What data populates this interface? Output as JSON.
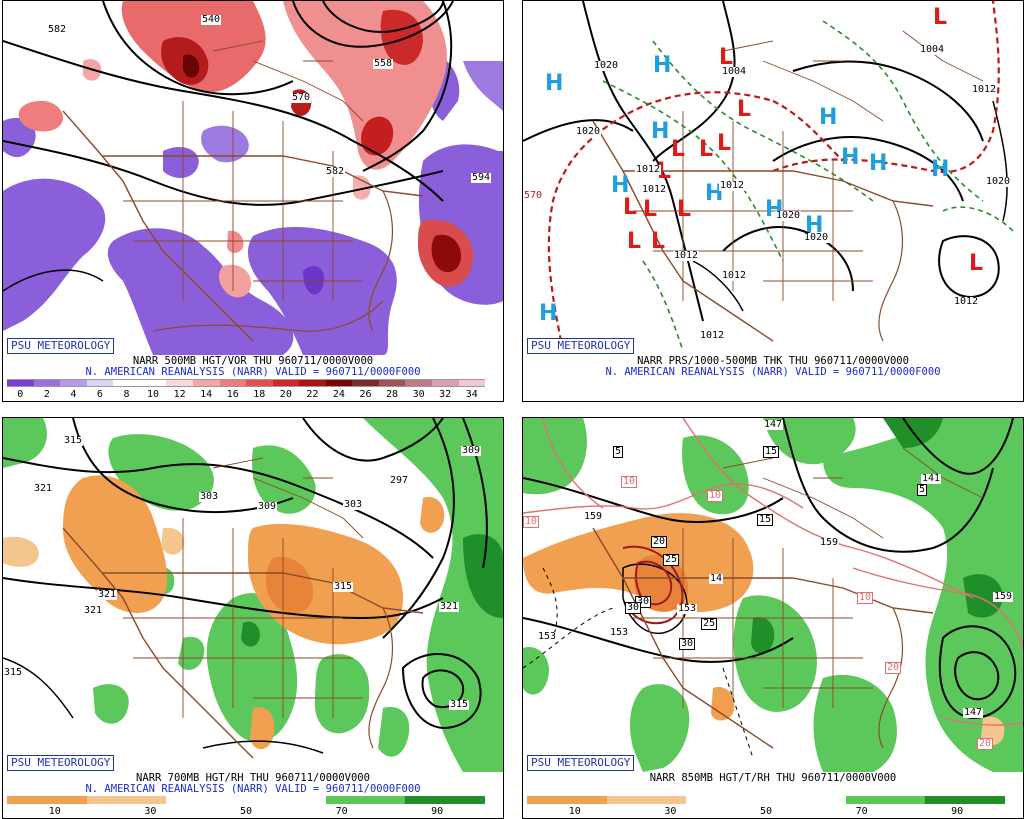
{
  "panels": {
    "p1": {
      "title": "NARR 500MB HGT/VOR THU 960711/0000V000",
      "subtitle": "N. AMERICAN REANALYSIS (NARR) VALID = 960711/0000F000",
      "badge": "PSU METEOROLOGY",
      "colorbar": {
        "ticks": [
          "0",
          "2",
          "4",
          "6",
          "8",
          "10",
          "12",
          "14",
          "16",
          "18",
          "20",
          "22",
          "24",
          "26",
          "28",
          "30",
          "32",
          "34"
        ],
        "colors": [
          "#7d3fd1",
          "#9a6fe0",
          "#b89be8",
          "#ddd3f3",
          "#ffffff",
          "#ffffff",
          "#fbd8d8",
          "#f5a6a6",
          "#ee7c7c",
          "#e05050",
          "#cc2a2a",
          "#aa1414",
          "#7a0505",
          "#7a2b2b",
          "#a0525a",
          "#c07a86",
          "#dc9fb0",
          "#f4c7d6"
        ]
      },
      "contour_labels": [
        "582",
        "558",
        "570",
        "582",
        "594",
        "540"
      ]
    },
    "p2": {
      "title": "NARR PRS/1000-500MB THK THU 960711/0000V000",
      "subtitle": "N. AMERICAN REANALYSIS (NARR) VALID = 960711/0000F000",
      "badge": "PSU METEOROLOGY",
      "contour_labels": [
        "1020",
        "1004",
        "1004",
        "1012",
        "1020",
        "1012",
        "1012",
        "1012",
        "1012",
        "1020",
        "1020",
        "1012",
        "1012",
        "570",
        "1020",
        "1012"
      ],
      "highs": [
        "H",
        "H",
        "H",
        "H",
        "H",
        "H",
        "H",
        "H",
        "H",
        "H",
        "H",
        "H"
      ],
      "lows": [
        "L",
        "L",
        "L",
        "L",
        "L",
        "L",
        "L",
        "L",
        "L",
        "L",
        "L",
        "L",
        "L"
      ]
    },
    "p3": {
      "title": "NARR 700MB HGT/RH THU 960711/0000V000",
      "subtitle": "N. AMERICAN REANALYSIS (NARR) VALID = 960711/0000F000",
      "badge": "PSU METEOROLOGY",
      "colorbar": {
        "ticks": [
          "10",
          "30",
          "50",
          "70",
          "90"
        ],
        "colors": [
          "#f0a050",
          "#f5c590",
          "#ffffff",
          "#ffffff",
          "#5cc85c",
          "#1f8f2a"
        ]
      },
      "contour_labels": [
        "315",
        "303",
        "309",
        "303",
        "297",
        "315",
        "321",
        "321",
        "321",
        "315",
        "315",
        "321",
        "309"
      ]
    },
    "p4": {
      "title": "NARR 850MB HGT/T/RH THU 960711/0000V000",
      "badge": "PSU METEOROLOGY",
      "colorbar": {
        "ticks": [
          "10",
          "30",
          "50",
          "70",
          "90"
        ],
        "colors": [
          "#f0a050",
          "#f5c590",
          "#ffffff",
          "#ffffff",
          "#5cc85c",
          "#1f8f2a"
        ]
      },
      "contour_labels": [
        "147",
        "159",
        "159",
        "153",
        "153",
        "141",
        "159",
        "147",
        "153"
      ],
      "temp_labels": [
        "5",
        "15",
        "10",
        "10",
        "10",
        "15",
        "20",
        "25",
        "30",
        "30",
        "14",
        "25",
        "30",
        "10",
        "5",
        "20",
        "20"
      ]
    }
  }
}
